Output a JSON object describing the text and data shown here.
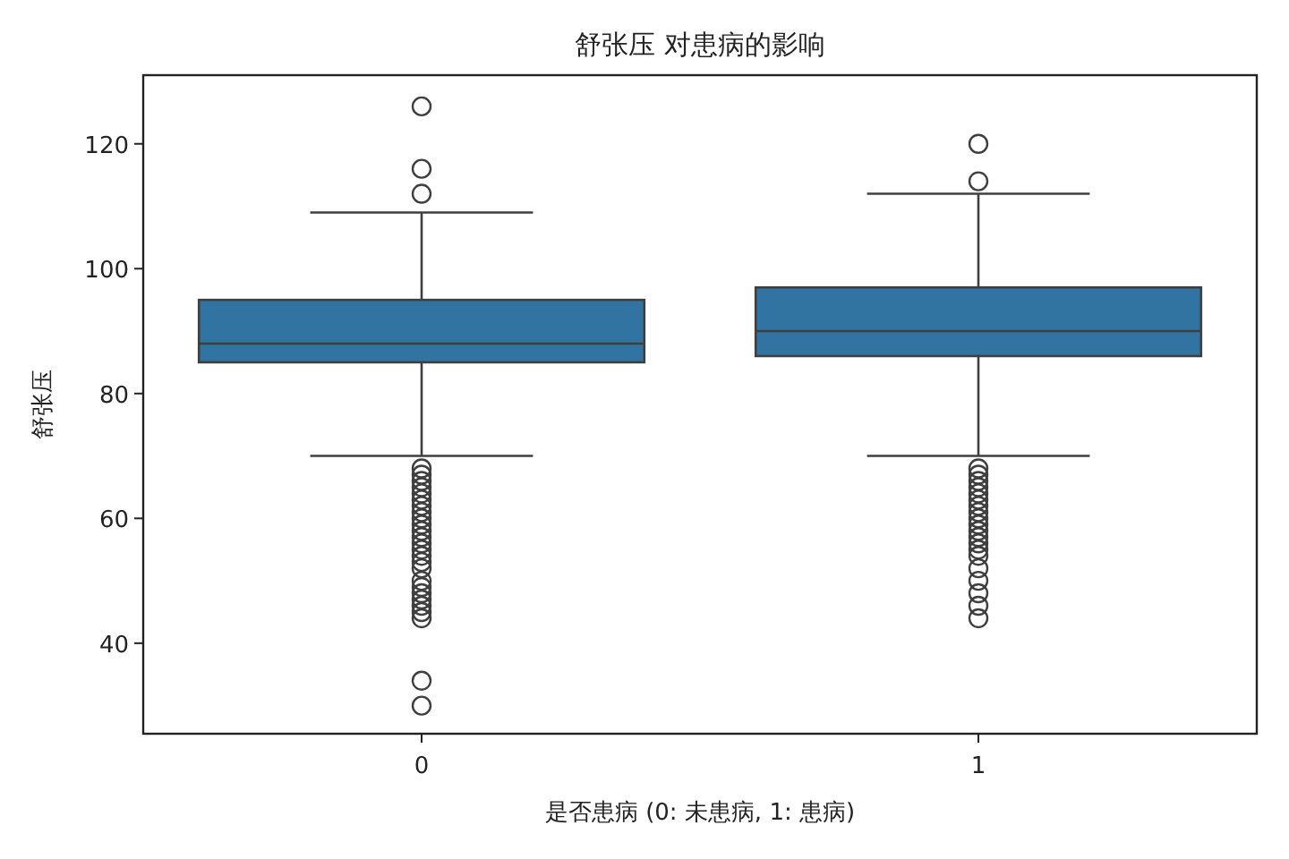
{
  "chart_data": {
    "type": "box",
    "title": "舒张压 对患病的影响",
    "xlabel": "是否患病 (0: 未患病, 1: 患病)",
    "ylabel": "舒张压",
    "categories": [
      "0",
      "1"
    ],
    "series": [
      {
        "color": "#3274a1",
        "boxes": [
          {
            "low": 70,
            "q1": 85,
            "median": 88,
            "q3": 95,
            "high": 109,
            "outliers": [
              126,
              116,
              112,
              68,
              67,
              66,
              65,
              64,
              63,
              62,
              61,
              60,
              59,
              58,
              57,
              56,
              55,
              54,
              53,
              52,
              50,
              49,
              48,
              47,
              46,
              45,
              44,
              34,
              30
            ]
          },
          {
            "low": 70,
            "q1": 86,
            "median": 90,
            "q3": 97,
            "high": 112,
            "outliers": [
              120,
              114,
              68,
              67,
              66,
              65,
              64,
              63,
              62,
              61,
              60,
              59,
              58,
              57,
              56,
              55,
              54,
              52,
              50,
              48,
              46,
              44
            ]
          }
        ]
      }
    ],
    "ylim": [
      25.5,
      131
    ],
    "yticks": [
      40,
      60,
      80,
      100,
      120
    ],
    "grid": false
  }
}
